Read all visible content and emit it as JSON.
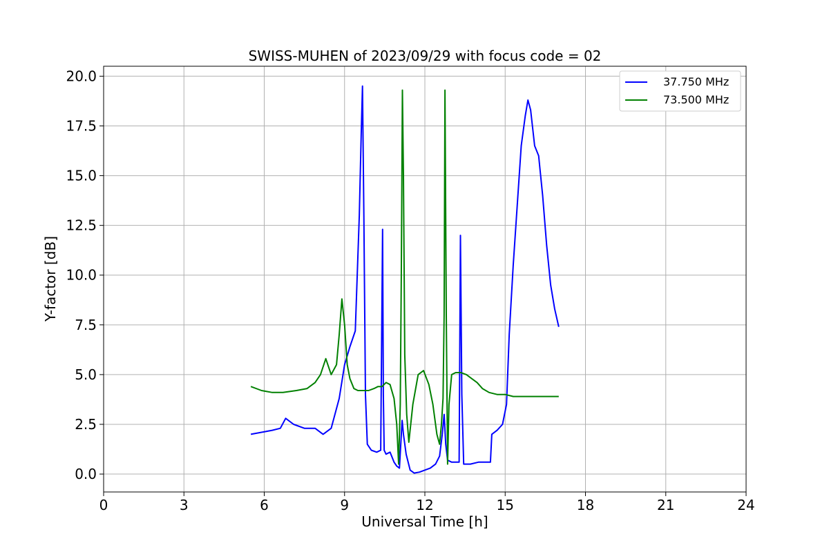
{
  "chart_data": {
    "type": "line",
    "title": "SWISS-MUHEN of 2023/09/29 with focus code = 02",
    "xlabel": "Universal Time [h]",
    "ylabel": "Y-factor [dB]",
    "xlim": [
      0,
      24
    ],
    "ylim": [
      -0.9,
      20.5
    ],
    "xticks": [
      0,
      3,
      6,
      9,
      12,
      15,
      18,
      21,
      24
    ],
    "xtick_labels": [
      "0",
      "3",
      "6",
      "9",
      "12",
      "15",
      "18",
      "21",
      "24"
    ],
    "yticks": [
      0,
      2.5,
      5,
      7.5,
      10,
      12.5,
      15,
      17.5,
      20
    ],
    "ytick_labels": [
      "0.0",
      "2.5",
      "5.0",
      "7.5",
      "10.0",
      "12.5",
      "15.0",
      "17.5",
      "20.0"
    ],
    "grid": true,
    "legend_position": "top-right",
    "series": [
      {
        "name": "37.750 MHz",
        "color": "#0000ff",
        "x": [
          5.5,
          5.9,
          6.3,
          6.6,
          6.8,
          7.1,
          7.5,
          7.9,
          8.2,
          8.5,
          8.8,
          9.0,
          9.2,
          9.4,
          9.55,
          9.62,
          9.67,
          9.72,
          9.78,
          9.85,
          10.0,
          10.2,
          10.35,
          10.42,
          10.45,
          10.48,
          10.55,
          10.7,
          10.85,
          10.95,
          11.05,
          11.15,
          11.2,
          11.3,
          11.45,
          11.6,
          11.8,
          12.0,
          12.2,
          12.4,
          12.55,
          12.65,
          12.72,
          12.78,
          12.85,
          13.0,
          13.15,
          13.28,
          13.33,
          13.38,
          13.45,
          13.7,
          14.0,
          14.3,
          14.45,
          14.5,
          14.7,
          14.9,
          15.05,
          15.15,
          15.3,
          15.45,
          15.6,
          15.75,
          15.85,
          15.95,
          16.1,
          16.25,
          16.4,
          16.55,
          16.7,
          16.85,
          17.0
        ],
        "y": [
          2.0,
          2.1,
          2.2,
          2.3,
          2.8,
          2.5,
          2.3,
          2.3,
          2.0,
          2.3,
          3.8,
          5.5,
          6.4,
          7.2,
          13.0,
          17.0,
          19.5,
          13.0,
          4.0,
          1.5,
          1.2,
          1.1,
          1.2,
          12.3,
          4.0,
          1.2,
          1.0,
          1.1,
          0.6,
          0.4,
          0.3,
          2.7,
          2.0,
          1.0,
          0.2,
          0.05,
          0.1,
          0.2,
          0.3,
          0.5,
          0.9,
          2.0,
          3.0,
          1.5,
          0.7,
          0.6,
          0.6,
          0.6,
          12.0,
          4.0,
          0.5,
          0.5,
          0.6,
          0.6,
          0.6,
          2.0,
          2.2,
          2.5,
          3.5,
          7.0,
          10.5,
          13.5,
          16.5,
          18.0,
          18.8,
          18.3,
          16.5,
          16.0,
          14.0,
          11.5,
          9.5,
          8.3,
          7.4
        ]
      },
      {
        "name": "73.500 MHz",
        "color": "#008000",
        "x": [
          5.5,
          5.9,
          6.3,
          6.7,
          7.2,
          7.6,
          7.9,
          8.1,
          8.3,
          8.5,
          8.7,
          8.8,
          8.9,
          9.0,
          9.1,
          9.2,
          9.35,
          9.5,
          9.7,
          9.9,
          10.1,
          10.25,
          10.4,
          10.55,
          10.7,
          10.85,
          10.95,
          11.02,
          11.08,
          11.12,
          11.16,
          11.2,
          11.25,
          11.32,
          11.4,
          11.55,
          11.75,
          11.95,
          12.15,
          12.3,
          12.45,
          12.55,
          12.62,
          12.68,
          12.72,
          12.75,
          12.8,
          12.85,
          12.9,
          13.0,
          13.15,
          13.35,
          13.55,
          13.75,
          13.95,
          14.15,
          14.4,
          14.7,
          15.0,
          15.3,
          15.6,
          15.9,
          16.2,
          16.6,
          17.0
        ],
        "y": [
          4.4,
          4.2,
          4.1,
          4.1,
          4.2,
          4.3,
          4.6,
          5.0,
          5.8,
          5.0,
          5.5,
          7.0,
          8.8,
          7.5,
          5.5,
          4.8,
          4.3,
          4.2,
          4.2,
          4.2,
          4.3,
          4.4,
          4.4,
          4.6,
          4.5,
          3.8,
          2.5,
          0.5,
          3.5,
          10.0,
          19.3,
          15.0,
          6.0,
          3.0,
          1.6,
          3.5,
          5.0,
          5.2,
          4.5,
          3.5,
          2.0,
          1.5,
          2.5,
          3.8,
          8.0,
          19.3,
          8.0,
          0.5,
          3.5,
          5.0,
          5.1,
          5.1,
          5.0,
          4.8,
          4.6,
          4.3,
          4.1,
          4.0,
          4.0,
          3.9,
          3.9,
          3.9,
          3.9,
          3.9,
          3.9
        ]
      }
    ]
  }
}
